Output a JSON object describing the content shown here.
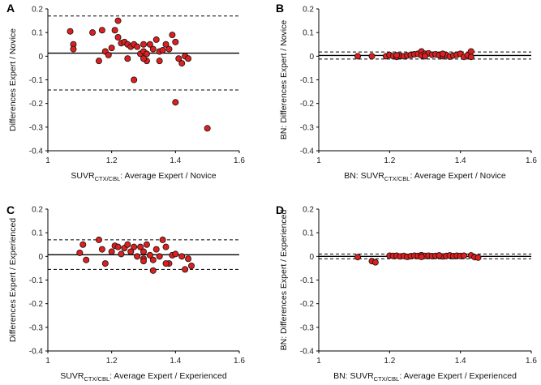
{
  "chart_data": [
    {
      "type": "scatter",
      "panel_label": "A",
      "xlabel": {
        "prefix": "SUVR",
        "sub": "CTX/CBL",
        "suffix": ": Average Expert / Novice"
      },
      "ylabel": "Differences Expert / Novice",
      "xlim": [
        1,
        1.6
      ],
      "ylim": [
        -0.4,
        0.2
      ],
      "xticks": [
        "1",
        "1.2",
        "1.4",
        "1.6"
      ],
      "yticks": [
        "0.2",
        "0.1",
        "0",
        "-0.1",
        "-0.2",
        "-0.3",
        "-0.4"
      ],
      "mean": 0.013,
      "upper_limit": 0.17,
      "lower_limit": -0.143,
      "x": [
        1.07,
        1.08,
        1.08,
        1.14,
        1.16,
        1.18,
        1.17,
        1.2,
        1.21,
        1.22,
        1.23,
        1.19,
        1.22,
        1.24,
        1.25,
        1.26,
        1.27,
        1.28,
        1.29,
        1.3,
        1.3,
        1.31,
        1.31,
        1.32,
        1.33,
        1.34,
        1.35,
        1.36,
        1.37,
        1.38,
        1.39,
        1.4,
        1.41,
        1.42,
        1.43,
        1.44,
        1.27,
        1.25,
        1.3,
        1.35,
        1.4,
        1.5
      ],
      "y": [
        0.105,
        0.05,
        0.03,
        0.1,
        -0.02,
        0.02,
        0.11,
        0.035,
        0.11,
        0.15,
        0.055,
        0.005,
        0.08,
        0.06,
        0.05,
        0.04,
        0.05,
        0.04,
        0.01,
        0.05,
        0.02,
        0.01,
        -0.02,
        0.05,
        0.03,
        0.07,
        0.02,
        0.025,
        0.05,
        0.03,
        0.09,
        0.06,
        -0.01,
        -0.03,
        0,
        -0.01,
        -0.1,
        -0.01,
        -0.01,
        -0.02,
        -0.195,
        -0.305
      ]
    },
    {
      "type": "scatter",
      "panel_label": "B",
      "xlabel": {
        "prefix": "BN: SUVR",
        "sub": "CTX/CBL",
        "suffix": ": Average Expert / Novice"
      },
      "ylabel": "BN: Differences Expert / Novice",
      "xlim": [
        1,
        1.6
      ],
      "ylim": [
        -0.4,
        0.2
      ],
      "xticks": [
        "1",
        "1.2",
        "1.4",
        "1.6"
      ],
      "yticks": [
        "0.2",
        "0.1",
        "0",
        "-0.1",
        "-0.2",
        "-0.3",
        "-0.4"
      ],
      "mean": 0.003,
      "upper_limit": 0.018,
      "lower_limit": -0.012,
      "x": [
        1.11,
        1.15,
        1.19,
        1.2,
        1.21,
        1.22,
        1.23,
        1.24,
        1.25,
        1.26,
        1.27,
        1.28,
        1.29,
        1.29,
        1.3,
        1.31,
        1.32,
        1.33,
        1.34,
        1.35,
        1.36,
        1.37,
        1.38,
        1.39,
        1.4,
        1.41,
        1.42,
        1.43,
        1.43,
        1.22,
        1.3,
        1.35
      ],
      "y": [
        0,
        0,
        0,
        0.005,
        0,
        -0.003,
        0.002,
        0,
        0.003,
        0.005,
        0.008,
        0.01,
        0.02,
        0.003,
        0.01,
        0.012,
        0.006,
        0.008,
        0.004,
        0,
        0.005,
        -0.002,
        0.003,
        0.006,
        0.01,
        -0.003,
        0.004,
        0.02,
        -0.003,
        0.004,
        0.0,
        0.01
      ]
    },
    {
      "type": "scatter",
      "panel_label": "C",
      "xlabel": {
        "prefix": "SUVR",
        "sub": "CTX/CBL",
        "suffix": ": Average Expert / Experienced"
      },
      "ylabel": "Differences Expert / Experienced",
      "xlim": [
        1,
        1.6
      ],
      "ylim": [
        -0.4,
        0.2
      ],
      "xticks": [
        "1",
        "1.2",
        "1.4",
        "1.6"
      ],
      "yticks": [
        "0.2",
        "0.1",
        "0",
        "-0.1",
        "-0.2",
        "-0.3",
        "-0.4"
      ],
      "mean": 0.007,
      "upper_limit": 0.07,
      "lower_limit": -0.055,
      "x": [
        1.1,
        1.11,
        1.12,
        1.16,
        1.17,
        1.18,
        1.2,
        1.21,
        1.22,
        1.23,
        1.24,
        1.25,
        1.26,
        1.27,
        1.28,
        1.29,
        1.3,
        1.3,
        1.31,
        1.32,
        1.33,
        1.34,
        1.35,
        1.36,
        1.37,
        1.38,
        1.39,
        1.4,
        1.42,
        1.43,
        1.44,
        1.45,
        1.33,
        1.37,
        1.3
      ],
      "y": [
        0.015,
        0.05,
        -0.015,
        0.07,
        0.03,
        -0.03,
        0.02,
        0.045,
        0.04,
        0.01,
        0.035,
        0.05,
        0.02,
        0.04,
        0,
        0.04,
        0.02,
        -0.01,
        0.05,
        0.005,
        -0.015,
        0.03,
        0,
        0.07,
        0.04,
        -0.03,
        0.005,
        0.01,
        0,
        -0.055,
        -0.01,
        -0.04,
        -0.06,
        -0.03,
        -0.02
      ]
    },
    {
      "type": "scatter",
      "panel_label": "D",
      "xlabel": {
        "prefix": "BN: SUVR",
        "sub": "CTX/CBL",
        "suffix": ": Average Expert / Experienced"
      },
      "ylabel": "BN: Differences Expert / Experienced",
      "xlim": [
        1,
        1.6
      ],
      "ylim": [
        -0.4,
        0.2
      ],
      "xticks": [
        "1",
        "1.2",
        "1.4",
        "1.6"
      ],
      "yticks": [
        "0.2",
        "0.1",
        "0",
        "-0.1",
        "-0.2",
        "-0.3",
        "-0.4"
      ],
      "mean": 0.0,
      "upper_limit": 0.01,
      "lower_limit": -0.01,
      "x": [
        1.11,
        1.15,
        1.16,
        1.2,
        1.21,
        1.22,
        1.23,
        1.24,
        1.25,
        1.26,
        1.27,
        1.28,
        1.29,
        1.3,
        1.31,
        1.32,
        1.33,
        1.34,
        1.35,
        1.36,
        1.37,
        1.38,
        1.39,
        1.4,
        1.41,
        1.43,
        1.44,
        1.45,
        1.29,
        1.34
      ],
      "y": [
        -0.003,
        -0.02,
        -0.025,
        0.003,
        0.002,
        0.003,
        0,
        0.002,
        -0.002,
        0.001,
        0.003,
        0.002,
        0.005,
        0.002,
        0.003,
        0.001,
        0.002,
        0.003,
        0,
        0.002,
        0.004,
        0.001,
        0.003,
        0.002,
        0.003,
        0.004,
        -0.003,
        -0.005,
        -0.002,
        0.004
      ]
    }
  ]
}
